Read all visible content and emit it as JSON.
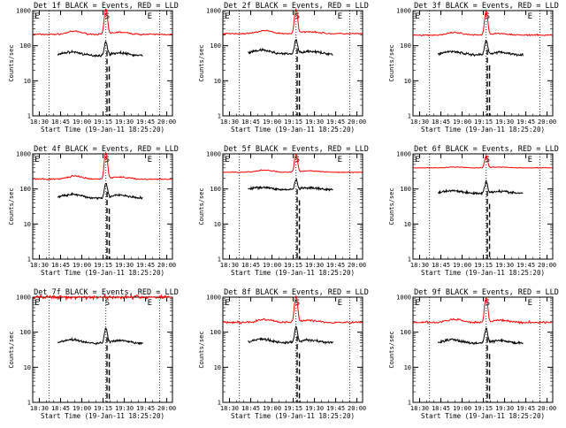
{
  "figure": {
    "ylabel": "Counts/sec",
    "xlabel": "Start Time (19-Jan-11 18:25:20)"
  },
  "chart_data": [
    {
      "type": "line",
      "title": "Det 1f BLACK = Events, RED = LLD",
      "x_ticks": [
        "18:30",
        "18:45",
        "19:00",
        "19:15",
        "19:30",
        "19:45",
        "20:00"
      ],
      "y_ticks": [
        "1",
        "10",
        "100",
        "1000"
      ],
      "ylim": [
        1,
        1000
      ],
      "yscale": "log",
      "markers": [
        "E",
        "S",
        "E"
      ],
      "red_base": 210,
      "black_base": 52,
      "red_peak": 1100,
      "black_peak": 130,
      "red_noise": 0.03,
      "black_start": "18:43",
      "black_end": "19:43",
      "red_humps": [
        [
          0.3,
          0.05,
          0.22
        ],
        [
          0.62,
          0.06,
          0.15
        ]
      ],
      "black_humps": [
        [
          0.28,
          0.06,
          0.28
        ],
        [
          0.62,
          0.06,
          0.2
        ]
      ]
    },
    {
      "type": "line",
      "title": "Det 2f BLACK = Events, RED = LLD",
      "x_ticks": [
        "18:30",
        "18:45",
        "19:00",
        "19:15",
        "19:30",
        "19:45",
        "20:00"
      ],
      "y_ticks": [
        "1",
        "10",
        "100",
        "1000"
      ],
      "ylim": [
        1,
        1000
      ],
      "yscale": "log",
      "markers": [
        "E",
        "S",
        "E"
      ],
      "red_base": 220,
      "black_base": 58,
      "red_peak": 1100,
      "black_peak": 150,
      "red_noise": 0.03,
      "black_start": "18:43",
      "black_end": "19:43",
      "red_humps": [
        [
          0.3,
          0.05,
          0.22
        ],
        [
          0.62,
          0.06,
          0.15
        ]
      ],
      "black_humps": [
        [
          0.28,
          0.06,
          0.28
        ],
        [
          0.62,
          0.06,
          0.2
        ]
      ]
    },
    {
      "type": "line",
      "title": "Det 3f BLACK = Events, RED = LLD",
      "x_ticks": [
        "18:30",
        "18:45",
        "19:00",
        "19:15",
        "19:30",
        "19:45",
        "20:00"
      ],
      "y_ticks": [
        "1",
        "10",
        "100",
        "1000"
      ],
      "ylim": [
        1,
        1000
      ],
      "yscale": "log",
      "markers": [
        "E",
        "S",
        "E"
      ],
      "red_base": 200,
      "black_base": 55,
      "red_peak": 1000,
      "black_peak": 140,
      "red_noise": 0.03,
      "black_start": "18:43",
      "black_end": "19:43",
      "red_humps": [
        [
          0.3,
          0.05,
          0.18
        ],
        [
          0.62,
          0.06,
          0.12
        ]
      ],
      "black_humps": [
        [
          0.28,
          0.06,
          0.25
        ],
        [
          0.62,
          0.06,
          0.18
        ]
      ]
    },
    {
      "type": "line",
      "title": "Det 4f BLACK = Events, RED = LLD",
      "x_ticks": [
        "18:30",
        "18:45",
        "19:00",
        "19:15",
        "19:30",
        "19:45",
        "20:00"
      ],
      "y_ticks": [
        "1",
        "10",
        "100",
        "1000"
      ],
      "ylim": [
        1,
        1000
      ],
      "yscale": "log",
      "markers": [
        "E",
        "S",
        "E"
      ],
      "red_base": 190,
      "black_base": 55,
      "red_peak": 1100,
      "black_peak": 150,
      "red_noise": 0.03,
      "black_start": "18:43",
      "black_end": "19:43",
      "red_humps": [
        [
          0.3,
          0.05,
          0.22
        ],
        [
          0.62,
          0.06,
          0.15
        ]
      ],
      "black_humps": [
        [
          0.28,
          0.06,
          0.28
        ],
        [
          0.62,
          0.06,
          0.2
        ]
      ]
    },
    {
      "type": "line",
      "title": "Det 5f BLACK = Events, RED = LLD",
      "x_ticks": [
        "18:30",
        "18:45",
        "19:00",
        "19:15",
        "19:30",
        "19:45",
        "20:00"
      ],
      "y_ticks": [
        "1",
        "10",
        "100",
        "1000"
      ],
      "ylim": [
        1,
        1000
      ],
      "yscale": "log",
      "markers": [
        "E",
        "S",
        "E"
      ],
      "red_base": 300,
      "black_base": 95,
      "red_peak": 1000,
      "black_peak": 180,
      "red_noise": 0.02,
      "black_start": "18:43",
      "black_end": "19:43",
      "red_humps": [
        [
          0.3,
          0.05,
          0.15
        ],
        [
          0.62,
          0.06,
          0.1
        ]
      ],
      "black_humps": [
        [
          0.28,
          0.06,
          0.18
        ],
        [
          0.62,
          0.06,
          0.12
        ]
      ]
    },
    {
      "type": "line",
      "title": "Det 6f BLACK = Events, RED = LLD",
      "x_ticks": [
        "18:30",
        "18:45",
        "19:00",
        "19:15",
        "19:30",
        "19:45",
        "20:00"
      ],
      "y_ticks": [
        "1",
        "10",
        "100",
        "1000"
      ],
      "ylim": [
        1,
        1000
      ],
      "yscale": "log",
      "markers": [
        "E",
        "S",
        "E"
      ],
      "red_base": 400,
      "black_base": 75,
      "red_peak": 900,
      "black_peak": 160,
      "red_noise": 0.015,
      "black_start": "18:43",
      "black_end": "19:43",
      "red_humps": [
        [
          0.3,
          0.05,
          0.06
        ],
        [
          0.62,
          0.06,
          0.05
        ]
      ],
      "black_humps": [
        [
          0.28,
          0.06,
          0.2
        ],
        [
          0.62,
          0.06,
          0.15
        ]
      ]
    },
    {
      "type": "line",
      "title": "Det 7f BLACK = Events, RED = LLD",
      "x_ticks": [
        "18:30",
        "18:45",
        "19:00",
        "19:15",
        "19:30",
        "19:45",
        "20:00"
      ],
      "y_ticks": [
        "1",
        "10",
        "100",
        "1000"
      ],
      "ylim": [
        1,
        1000
      ],
      "yscale": "log",
      "markers": [
        "E",
        "S",
        "E"
      ],
      "red_base": 1000,
      "black_base": 48,
      "red_peak": 1000,
      "black_peak": 130,
      "red_noise": 0.08,
      "black_start": "18:43",
      "black_end": "19:43",
      "red_humps": [],
      "black_humps": [
        [
          0.28,
          0.06,
          0.28
        ],
        [
          0.62,
          0.06,
          0.2
        ]
      ]
    },
    {
      "type": "line",
      "title": "Det 8f BLACK = Events, RED = LLD",
      "x_ticks": [
        "18:30",
        "18:45",
        "19:00",
        "19:15",
        "19:30",
        "19:45",
        "20:00"
      ],
      "y_ticks": [
        "1",
        "10",
        "100",
        "1000"
      ],
      "ylim": [
        1,
        1000
      ],
      "yscale": "log",
      "markers": [
        "E",
        "S",
        "E"
      ],
      "red_base": 190,
      "black_base": 50,
      "red_peak": 1100,
      "black_peak": 140,
      "red_noise": 0.045,
      "black_start": "18:43",
      "black_end": "19:43",
      "red_humps": [
        [
          0.3,
          0.05,
          0.22
        ],
        [
          0.62,
          0.06,
          0.15
        ]
      ],
      "black_humps": [
        [
          0.28,
          0.06,
          0.28
        ],
        [
          0.62,
          0.06,
          0.2
        ]
      ]
    },
    {
      "type": "line",
      "title": "Det 9f BLACK = Events, RED = LLD",
      "x_ticks": [
        "18:30",
        "18:45",
        "19:00",
        "19:15",
        "19:30",
        "19:45",
        "20:00"
      ],
      "y_ticks": [
        "1",
        "10",
        "100",
        "1000"
      ],
      "ylim": [
        1,
        1000
      ],
      "yscale": "log",
      "markers": [
        "E",
        "S",
        "E"
      ],
      "red_base": 190,
      "black_base": 48,
      "red_peak": 1000,
      "black_peak": 130,
      "red_noise": 0.045,
      "black_start": "18:43",
      "black_end": "19:43",
      "red_humps": [
        [
          0.3,
          0.05,
          0.22
        ],
        [
          0.62,
          0.06,
          0.15
        ]
      ],
      "black_humps": [
        [
          0.28,
          0.06,
          0.28
        ],
        [
          0.62,
          0.06,
          0.2
        ]
      ]
    }
  ],
  "colors": {
    "lld": "#ff0000",
    "events": "#000000",
    "axis": "#000000"
  }
}
